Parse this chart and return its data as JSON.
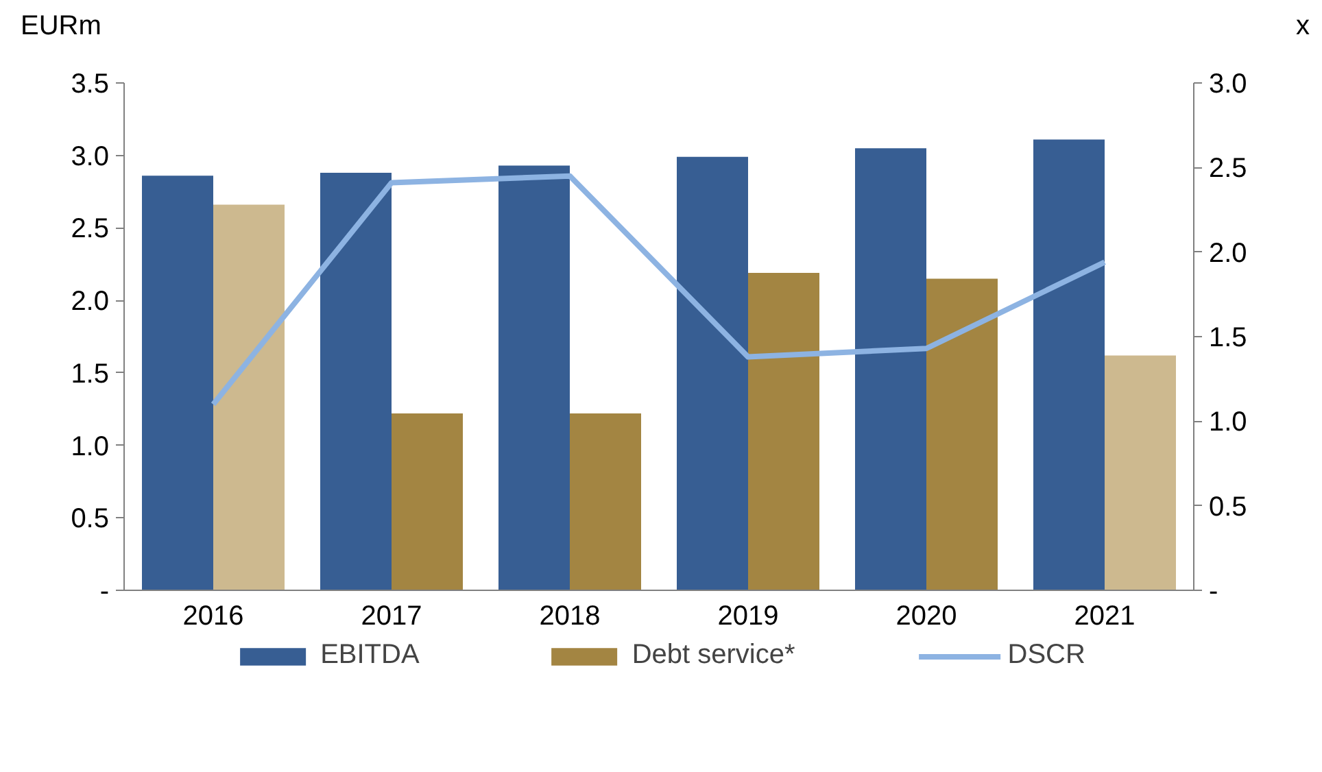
{
  "chart_data": {
    "type": "bar",
    "categories": [
      "2016",
      "2017",
      "2018",
      "2019",
      "2020",
      "2021"
    ],
    "ylabel": "EURm",
    "y2label": "x",
    "series": [
      {
        "name": "EBITDA",
        "color": "#375e93",
        "values": [
          2.86,
          2.88,
          2.93,
          2.99,
          3.05,
          3.11
        ]
      },
      {
        "name": "Debt service*",
        "color": "#a38542",
        "colors": [
          "#cdb98f",
          "#a38542",
          "#a38542",
          "#a38542",
          "#a38542",
          "#cdb98f"
        ],
        "values": [
          2.66,
          1.22,
          1.22,
          2.19,
          2.15,
          1.62
        ]
      },
      {
        "name": "DSCR",
        "type": "line",
        "axis": "y2",
        "color": "#8db3e2",
        "values": [
          1.1,
          2.41,
          2.45,
          1.38,
          1.43,
          1.94
        ]
      }
    ],
    "ylim": [
      0,
      3.5
    ],
    "yticks": [
      {
        "value": 0,
        "label": "-"
      },
      0.5,
      {
        "value": 1,
        "label": "1.0"
      },
      1.5,
      {
        "value": 2,
        "label": "2.0"
      },
      2.5,
      {
        "value": 3,
        "label": "3.0"
      },
      3.5
    ],
    "y2lim": [
      0,
      3.0
    ],
    "y2ticks": [
      {
        "value": 0,
        "label": "-"
      },
      0.5,
      {
        "value": 1,
        "label": "1.0"
      },
      1.5,
      {
        "value": 2,
        "label": "2.0"
      },
      2.5,
      {
        "value": 3,
        "label": "3.0"
      }
    ],
    "grid": false,
    "legend": "bottom",
    "marker": "none",
    "line_style": "solid"
  }
}
